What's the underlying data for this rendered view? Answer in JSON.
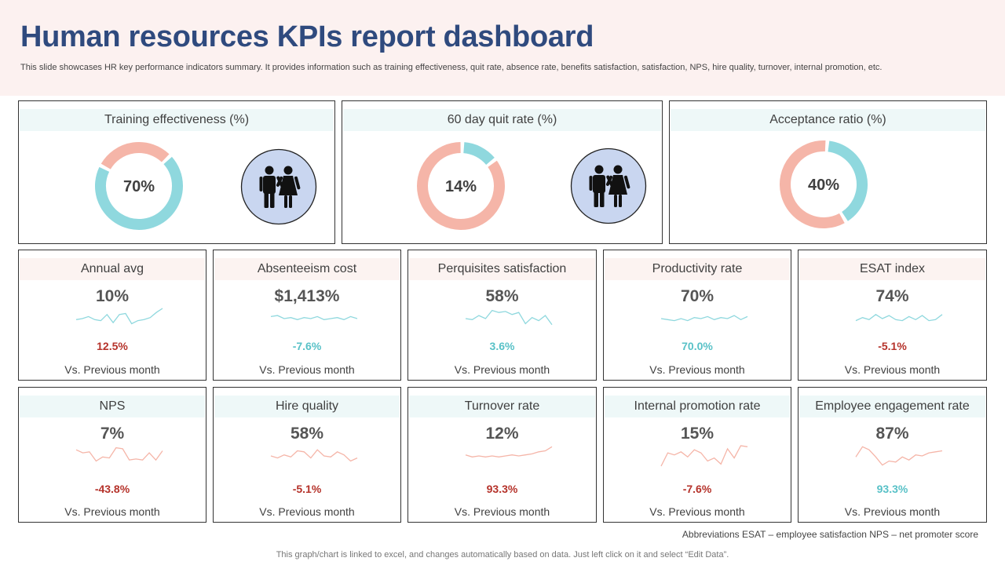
{
  "header": {
    "title": "Human resources KPIs report dashboard",
    "subtitle": "This slide showcases HR key performance indicators summary. It provides information such as training effectiveness, quit rate, absence rate, benefits satisfaction, satisfaction, NPS, hire quality, turnover, internal promotion, etc."
  },
  "colors": {
    "title": "#2f4a7e",
    "donut_primary": "#f5b5a8",
    "donut_secondary": "#8fd8de",
    "negative": "#b5322a",
    "positive": "#58c1c7",
    "icon_bg": "#c9d6f0"
  },
  "top_cards": [
    {
      "title": "Training effectiveness (%)",
      "value_label": "70%",
      "value": 70,
      "icon": "people-icon"
    },
    {
      "title": "60 day quit rate (%)",
      "value_label": "14%",
      "value": 14,
      "icon": "people-icon"
    },
    {
      "title": "Acceptance ratio (%)",
      "value_label": "40%",
      "value": 40
    }
  ],
  "kpi_cards": [
    {
      "title": "Annual avg",
      "value": "10%",
      "change": "12.5%",
      "trend": "negative",
      "sub": "Vs. Previous month",
      "spark": [
        0.55,
        0.5,
        0.4,
        0.55,
        0.6,
        0.3,
        0.7,
        0.3,
        0.25,
        0.75,
        0.6,
        0.55,
        0.45,
        0.2,
        0.0
      ]
    },
    {
      "title": "Absenteeism cost",
      "value": "$1,413%",
      "change": "-7.6%",
      "trend": "positive",
      "sub": "Vs. Previous month",
      "spark": [
        0.4,
        0.35,
        0.5,
        0.45,
        0.55,
        0.45,
        0.5,
        0.4,
        0.55,
        0.5,
        0.45,
        0.55,
        0.4,
        0.5
      ]
    },
    {
      "title": "Perquisites satisfaction",
      "value": "58%",
      "change": "3.6%",
      "trend": "positive",
      "sub": "Vs. Previous month",
      "spark": [
        0.5,
        0.55,
        0.35,
        0.5,
        0.1,
        0.2,
        0.15,
        0.3,
        0.2,
        0.75,
        0.45,
        0.6,
        0.35,
        0.8
      ]
    },
    {
      "title": "Productivity rate",
      "value": "70%",
      "change": "70.0%",
      "trend": "positive",
      "sub": "Vs. Previous month",
      "spark": [
        0.5,
        0.55,
        0.6,
        0.5,
        0.6,
        0.45,
        0.5,
        0.4,
        0.55,
        0.45,
        0.5,
        0.35,
        0.55,
        0.4
      ]
    },
    {
      "title": "ESAT index",
      "value": "74%",
      "change": "-5.1%",
      "trend": "negative",
      "sub": "Vs. Previous month",
      "spark": [
        0.6,
        0.45,
        0.55,
        0.3,
        0.5,
        0.35,
        0.55,
        0.6,
        0.4,
        0.55,
        0.35,
        0.6,
        0.55,
        0.3
      ]
    },
    {
      "title": "NPS",
      "value": "7%",
      "change": "-43.8%",
      "trend": "negative",
      "sub": "Vs. Previous month",
      "spark": [
        0.2,
        0.35,
        0.3,
        0.75,
        0.55,
        0.6,
        0.1,
        0.15,
        0.7,
        0.65,
        0.7,
        0.35,
        0.7,
        0.25
      ]
    },
    {
      "title": "Hire quality",
      "value": "58%",
      "change": "-5.1%",
      "trend": "negative",
      "sub": "Vs. Previous month",
      "spark": [
        0.5,
        0.6,
        0.45,
        0.55,
        0.25,
        0.3,
        0.6,
        0.2,
        0.5,
        0.55,
        0.3,
        0.45,
        0.75,
        0.6
      ]
    },
    {
      "title": "Turnover rate",
      "value": "12%",
      "change": "93.3%",
      "trend": "negative",
      "sub": "Vs. Previous month",
      "spark": [
        0.45,
        0.55,
        0.5,
        0.55,
        0.5,
        0.55,
        0.5,
        0.45,
        0.5,
        0.45,
        0.4,
        0.3,
        0.25,
        0.05
      ]
    },
    {
      "title": "Internal promotion rate",
      "value": "15%",
      "change": "-7.6%",
      "trend": "negative",
      "sub": "Vs. Previous month",
      "spark": [
        1.0,
        0.35,
        0.45,
        0.3,
        0.55,
        0.2,
        0.35,
        0.75,
        0.6,
        0.9,
        0.15,
        0.6,
        0.0,
        0.05
      ]
    },
    {
      "title": "Employee engagement rate",
      "value": "87%",
      "change": "93.3%",
      "trend": "positive",
      "sub": "Vs. Previous month",
      "spark": [
        0.55,
        0.05,
        0.2,
        0.55,
        0.95,
        0.75,
        0.8,
        0.55,
        0.7,
        0.45,
        0.5,
        0.35,
        0.3,
        0.25
      ]
    }
  ],
  "abbreviations": "Abbreviations ESAT  – employee satisfaction NPS – net promoter score",
  "footer": "This graph/chart is linked to excel,  and changes automatically based on data. Just left click on it and select “Edit Data”."
}
